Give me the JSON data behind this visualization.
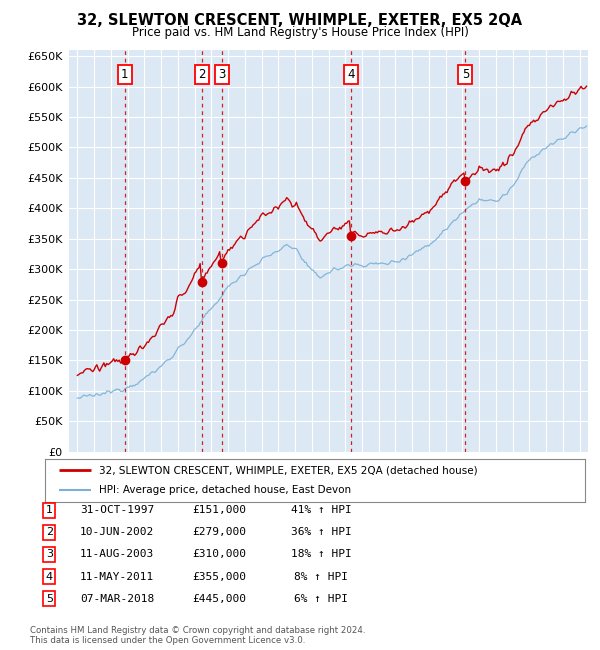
{
  "title": "32, SLEWTON CRESCENT, WHIMPLE, EXETER, EX5 2QA",
  "subtitle": "Price paid vs. HM Land Registry's House Price Index (HPI)",
  "background_color": "#dce9f5",
  "plot_bg_color": "#dce9f5",
  "grid_color": "#ffffff",
  "price_color": "#cc0000",
  "hpi_color": "#7bafd4",
  "sales": [
    {
      "num": 1,
      "date_str": "31-OCT-1997",
      "year": 1997.83,
      "price": 151000,
      "pct": "41%",
      "dir": "↑"
    },
    {
      "num": 2,
      "date_str": "10-JUN-2002",
      "year": 2002.44,
      "price": 279000,
      "pct": "36%",
      "dir": "↑"
    },
    {
      "num": 3,
      "date_str": "11-AUG-2003",
      "year": 2003.61,
      "price": 310000,
      "pct": "18%",
      "dir": "↑"
    },
    {
      "num": 4,
      "date_str": "11-MAY-2011",
      "year": 2011.36,
      "price": 355000,
      "pct": "8%",
      "dir": "↑"
    },
    {
      "num": 5,
      "date_str": "07-MAR-2018",
      "year": 2018.18,
      "price": 445000,
      "pct": "6%",
      "dir": "↑"
    }
  ],
  "legend_label_price": "32, SLEWTON CRESCENT, WHIMPLE, EXETER, EX5 2QA (detached house)",
  "legend_label_hpi": "HPI: Average price, detached house, East Devon",
  "footer": "Contains HM Land Registry data © Crown copyright and database right 2024.\nThis data is licensed under the Open Government Licence v3.0.",
  "table_rows": [
    [
      "1",
      "31-OCT-1997",
      "£151,000",
      "41% ↑ HPI"
    ],
    [
      "2",
      "10-JUN-2002",
      "£279,000",
      "36% ↑ HPI"
    ],
    [
      "3",
      "11-AUG-2003",
      "£310,000",
      "18% ↑ HPI"
    ],
    [
      "4",
      "11-MAY-2011",
      "£355,000",
      "8% ↑ HPI"
    ],
    [
      "5",
      "07-MAR-2018",
      "£445,000",
      "6% ↑ HPI"
    ]
  ],
  "xmin": 1994.5,
  "xmax": 2025.5,
  "ymin": 0,
  "ymax": 660000,
  "yticks": [
    0,
    50000,
    100000,
    150000,
    200000,
    250000,
    300000,
    350000,
    400000,
    450000,
    500000,
    550000,
    600000,
    650000
  ],
  "xticks": [
    1995,
    1996,
    1997,
    1998,
    1999,
    2000,
    2001,
    2002,
    2003,
    2004,
    2005,
    2006,
    2007,
    2008,
    2009,
    2010,
    2011,
    2012,
    2013,
    2014,
    2015,
    2016,
    2017,
    2018,
    2019,
    2020,
    2021,
    2022,
    2023,
    2024,
    2025
  ]
}
